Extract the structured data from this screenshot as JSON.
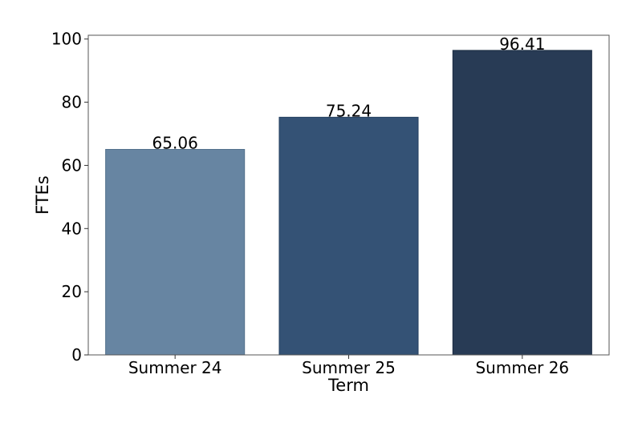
{
  "chart_data": {
    "type": "bar",
    "categories": [
      "Summer 24",
      "Summer 25",
      "Summer 26"
    ],
    "values": [
      65.06,
      75.24,
      96.41
    ],
    "data_labels": [
      "65.06",
      "75.24",
      "96.41"
    ],
    "bar_colors": [
      "#6785a2",
      "#345275",
      "#283b55"
    ],
    "bar_edge_colors": [
      "#52708c",
      "#243f60",
      "#1c2c42"
    ],
    "xlabel": "Term",
    "ylabel": "FTEs",
    "ylim": [
      0,
      101.2
    ],
    "yticks": [
      0,
      20,
      40,
      60,
      80,
      100
    ],
    "ytick_labels": [
      "0",
      "20",
      "40",
      "60",
      "80",
      "100"
    ],
    "grid": false,
    "legend": "none"
  }
}
